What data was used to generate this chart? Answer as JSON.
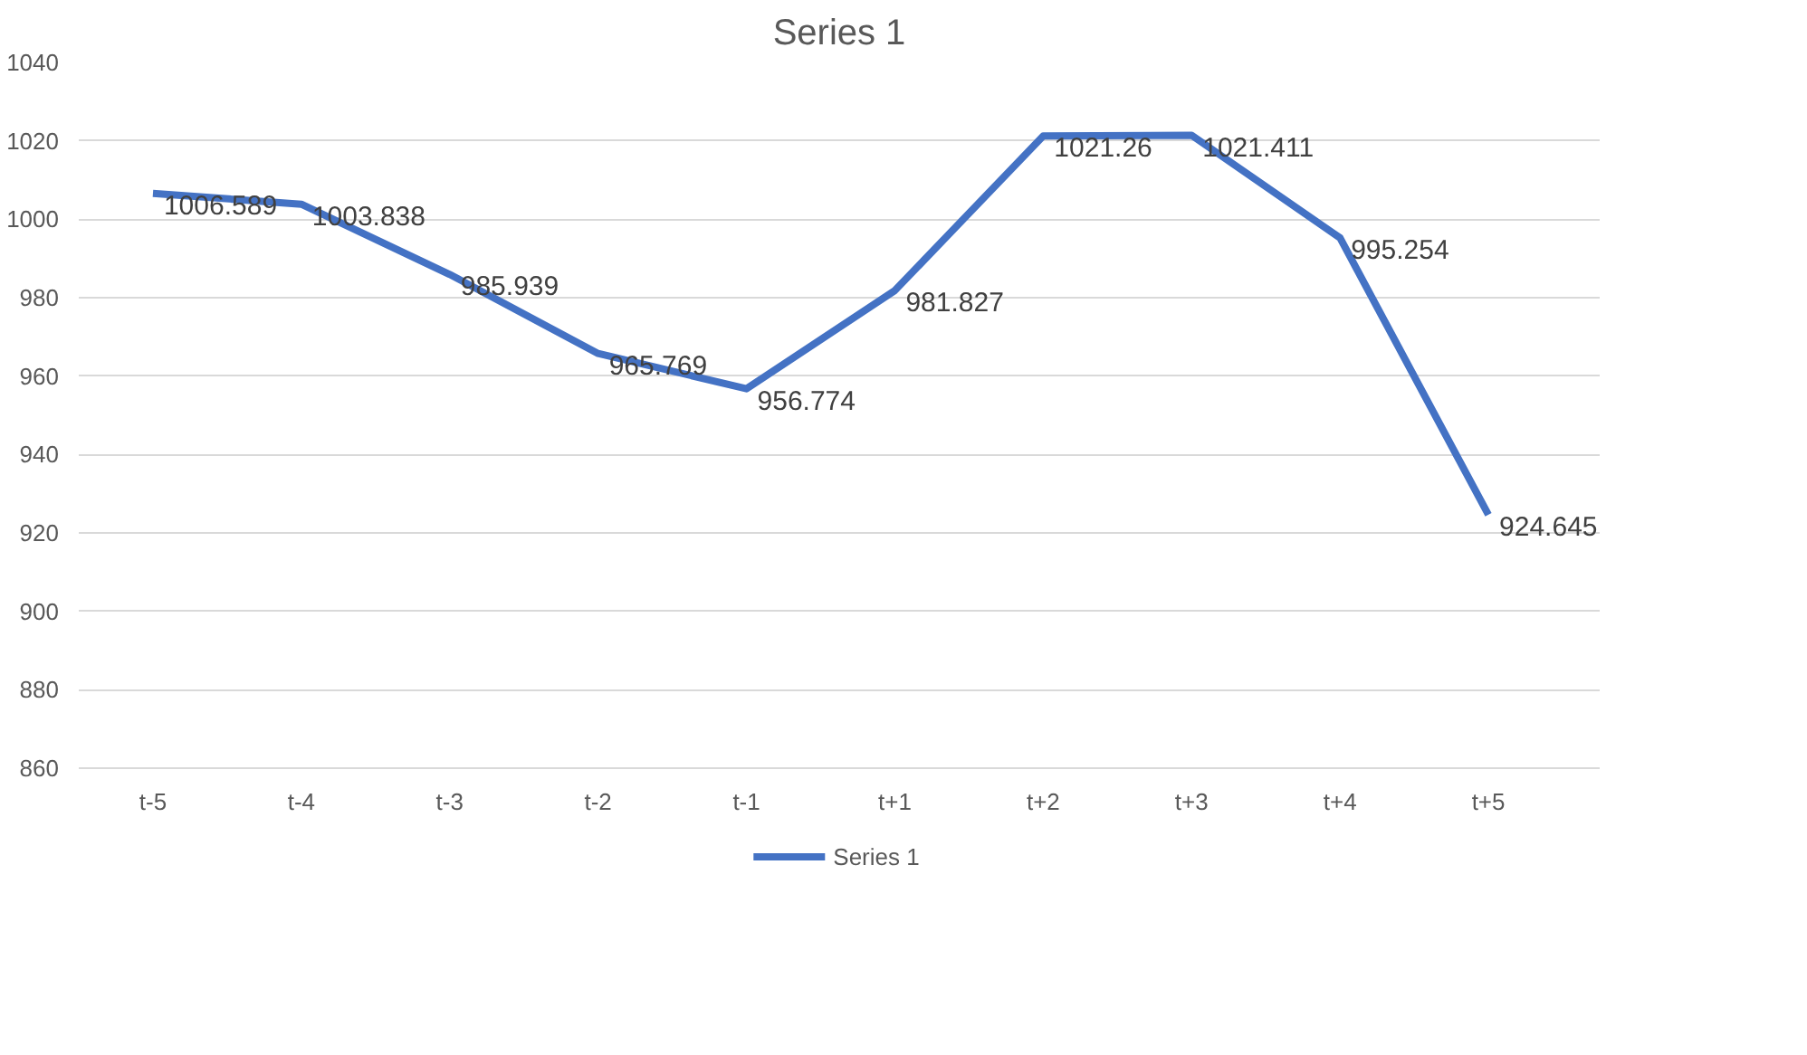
{
  "chart_data": {
    "type": "line",
    "title": "Series 1",
    "categories": [
      "t-5",
      "t-4",
      "t-3",
      "t-2",
      "t-1",
      "t+1",
      "t+2",
      "t+3",
      "t+4",
      "t+5"
    ],
    "series": [
      {
        "name": "Series 1",
        "color": "#4472c4",
        "values": [
          1006.589,
          1003.838,
          985.939,
          965.769,
          956.774,
          981.827,
          1021.26,
          1021.411,
          995.254,
          924.645
        ]
      }
    ],
    "ylim": [
      860,
      1040
    ],
    "yticks": [
      860,
      880,
      900,
      920,
      940,
      960,
      980,
      1000,
      1020,
      1040
    ],
    "grid": "y",
    "legend": "bottom",
    "data_labels": true,
    "marker": "none",
    "line_style": "solid"
  }
}
